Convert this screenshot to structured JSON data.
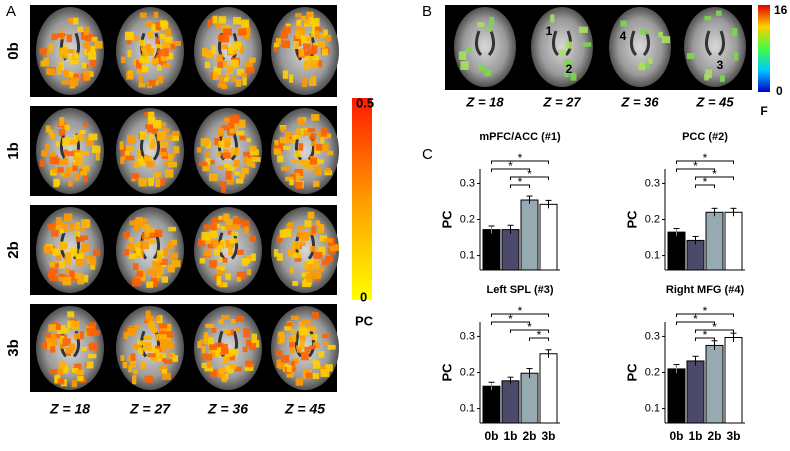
{
  "panel_a": {
    "label": "A",
    "rows": [
      "0b",
      "1b",
      "2b",
      "3b"
    ],
    "z_labels": [
      "Z = 18",
      "Z = 27",
      "Z = 36",
      "Z = 45"
    ],
    "colorbar": {
      "max": 0.5,
      "min": 0,
      "label": "PC"
    }
  },
  "panel_b": {
    "label": "B",
    "region_labels": [
      "1",
      "2",
      "3",
      "4"
    ],
    "z_labels": [
      "Z = 18",
      "Z = 27",
      "Z = 36",
      "Z = 45"
    ],
    "colorbar": {
      "max": 16,
      "min": 0,
      "label": "F"
    }
  },
  "panel_c": {
    "label": "C"
  },
  "chart_data": [
    {
      "type": "bar",
      "title": "mPFC/ACC (#1)",
      "ylabel": "PC",
      "values": [
        0.172,
        0.172,
        0.254,
        0.242
      ],
      "errors": [
        0.01,
        0.012,
        0.011,
        0.011
      ],
      "colors": [
        "#000000",
        "#4b4a6b",
        "#96aab2",
        "#ffffff"
      ],
      "ylim": [
        0.06,
        0.34
      ],
      "yticks": [
        0.1,
        0.2,
        0.3
      ],
      "brackets": [
        {
          "from": 0,
          "to": 3,
          "label": "*"
        },
        {
          "from": 0,
          "to": 2,
          "label": "*"
        },
        {
          "from": 1,
          "to": 3,
          "label": "*"
        },
        {
          "from": 1,
          "to": 2,
          "label": "*"
        }
      ]
    },
    {
      "type": "bar",
      "title": "PCC (#2)",
      "ylabel": "PC",
      "values": [
        0.165,
        0.142,
        0.22,
        0.22
      ],
      "errors": [
        0.01,
        0.011,
        0.011,
        0.011
      ],
      "colors": [
        "#000000",
        "#4b4a6b",
        "#96aab2",
        "#ffffff"
      ],
      "ylim": [
        0.06,
        0.34
      ],
      "yticks": [
        0.1,
        0.2,
        0.3
      ],
      "brackets": [
        {
          "from": 0,
          "to": 3,
          "label": "*"
        },
        {
          "from": 0,
          "to": 2,
          "label": "*"
        },
        {
          "from": 1,
          "to": 3,
          "label": "*"
        },
        {
          "from": 1,
          "to": 2,
          "label": "*"
        }
      ]
    },
    {
      "type": "bar",
      "title": "Left SPL (#3)",
      "categories": [
        "0b",
        "1b",
        "2b",
        "3b"
      ],
      "ylabel": "PC",
      "values": [
        0.162,
        0.177,
        0.198,
        0.252
      ],
      "errors": [
        0.011,
        0.01,
        0.013,
        0.011
      ],
      "colors": [
        "#000000",
        "#4b4a6b",
        "#96aab2",
        "#ffffff"
      ],
      "ylim": [
        0.06,
        0.34
      ],
      "yticks": [
        0.1,
        0.2,
        0.3
      ],
      "brackets": [
        {
          "from": 0,
          "to": 3,
          "label": "*"
        },
        {
          "from": 0,
          "to": 2,
          "label": "*"
        },
        {
          "from": 1,
          "to": 3,
          "label": "*"
        },
        {
          "from": 2,
          "to": 3,
          "label": "*"
        }
      ]
    },
    {
      "type": "bar",
      "title": "Right MFG (#4)",
      "categories": [
        "0b",
        "1b",
        "2b",
        "3b"
      ],
      "ylabel": "PC",
      "values": [
        0.21,
        0.232,
        0.275,
        0.297
      ],
      "errors": [
        0.012,
        0.013,
        0.013,
        0.012
      ],
      "colors": [
        "#000000",
        "#4b4a6b",
        "#96aab2",
        "#ffffff"
      ],
      "ylim": [
        0.06,
        0.34
      ],
      "yticks": [
        0.1,
        0.2,
        0.3
      ],
      "brackets": [
        {
          "from": 0,
          "to": 3,
          "label": "*"
        },
        {
          "from": 0,
          "to": 2,
          "label": "*"
        },
        {
          "from": 1,
          "to": 3,
          "label": "*"
        },
        {
          "from": 1,
          "to": 2,
          "label": "*"
        }
      ]
    }
  ]
}
